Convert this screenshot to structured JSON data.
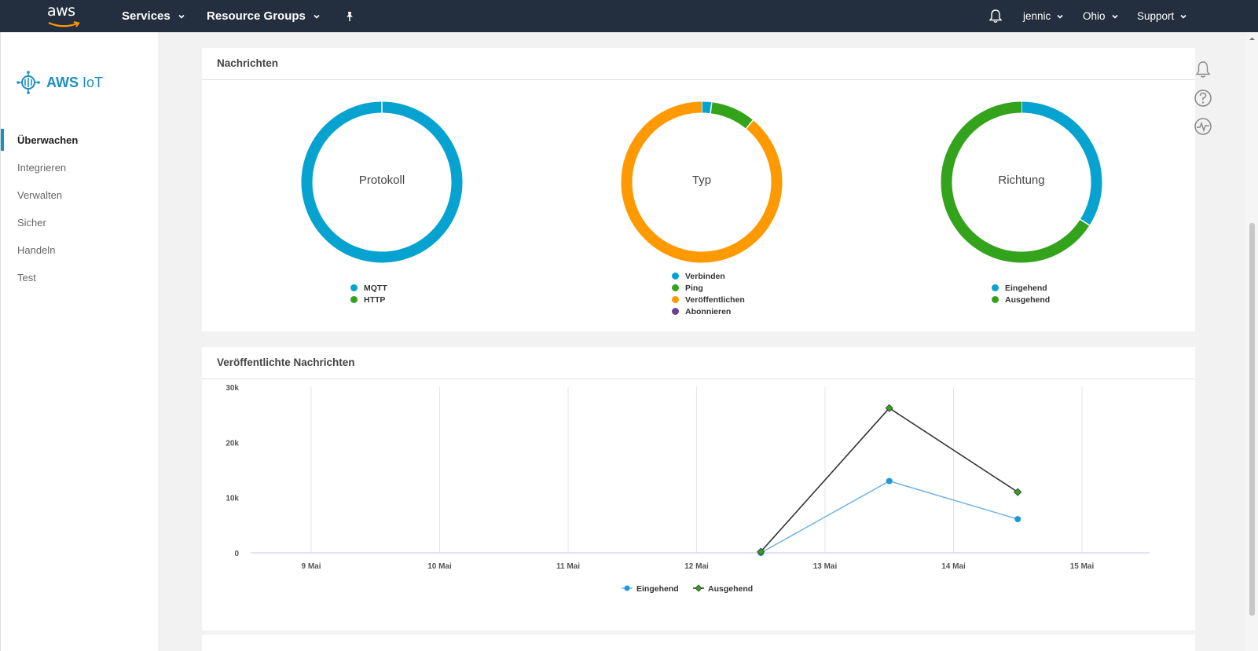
{
  "topnav": {
    "logo_text": "aws",
    "services_label": "Services",
    "resource_groups_label": "Resource Groups",
    "user_label": "jennic",
    "region_label": "Ohio",
    "support_label": "Support"
  },
  "sidebar": {
    "brand_bold": "AWS",
    "brand_light": "IoT",
    "items": [
      {
        "label": "Überwachen",
        "active": true
      },
      {
        "label": "Integrieren"
      },
      {
        "label": "Verwalten"
      },
      {
        "label": "Sicher"
      },
      {
        "label": "Handeln"
      },
      {
        "label": "Test"
      }
    ]
  },
  "messages_card": {
    "title": "Nachrichten",
    "donuts": [
      {
        "label": "Protokoll",
        "legend": [
          {
            "name": "MQTT",
            "color": "#06a3d1",
            "value": 100
          },
          {
            "name": "HTTP",
            "color": "#33a31c",
            "value": 0
          }
        ]
      },
      {
        "label": "Typ",
        "legend": [
          {
            "name": "Verbinden",
            "color": "#06a3d1",
            "value": 2
          },
          {
            "name": "Ping",
            "color": "#33a31c",
            "value": 9
          },
          {
            "name": "Veröffentlichen",
            "color": "#ff9900",
            "value": 89
          },
          {
            "name": "Abonnieren",
            "color": "#6c3f99",
            "value": 0
          }
        ]
      },
      {
        "label": "Richtung",
        "legend": [
          {
            "name": "Eingehend",
            "color": "#06a3d1",
            "value": 34
          },
          {
            "name": "Ausgehend",
            "color": "#33a31c",
            "value": 66
          }
        ]
      }
    ]
  },
  "published_card": {
    "title": "Veröffentlichte Nachrichten"
  },
  "chart_data": {
    "type": "line",
    "title": "Veröffentlichte Nachrichten",
    "xlabel": "",
    "ylabel": "",
    "x_ticks": [
      "9 Mai",
      "10 Mai",
      "11 Mai",
      "12 Mai",
      "13 Mai",
      "14 Mai",
      "15 Mai"
    ],
    "y_ticks": [
      "0",
      "10k",
      "20k",
      "30k"
    ],
    "ylim": [
      0,
      30000
    ],
    "grid": "vertical",
    "legend_position": "bottom-center",
    "series": [
      {
        "name": "Eingehend",
        "color": "#6eb3e8",
        "marker_color": "#1a9ad6",
        "marker": "circle",
        "x": [
          "2023-05-12T12:00",
          "2023-05-13T12:00",
          "2023-05-14T12:00"
        ],
        "y": [
          0,
          13000,
          6100
        ]
      },
      {
        "name": "Ausgehend",
        "color": "#333333",
        "marker_color": "#33a31c",
        "marker": "diamond",
        "x": [
          "2023-05-12T12:00",
          "2023-05-13T12:00",
          "2023-05-14T12:00"
        ],
        "y": [
          200,
          26200,
          11000
        ]
      }
    ]
  }
}
